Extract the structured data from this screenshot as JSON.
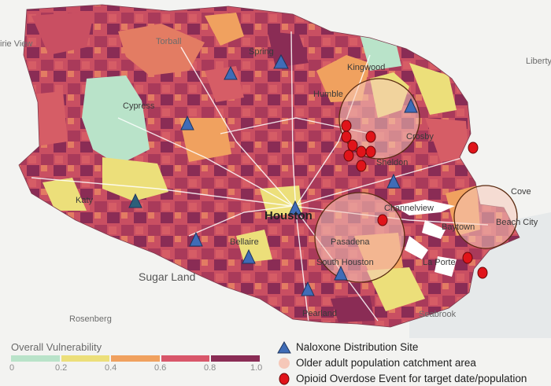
{
  "places": {
    "torball": "Torball",
    "spring": "Spring",
    "prairie_view": "irie View",
    "kingwood": "Kingwood",
    "humble": "Humble",
    "liberty": "Liberty",
    "cypress": "Cypress",
    "crosby": "Crosby",
    "sheldon": "Sheldon",
    "katy": "Katy",
    "houston": "Houston",
    "channelview": "Channelview",
    "cove": "Cove",
    "baytown": "Baytown",
    "beach_city": "Beach City",
    "pasadena": "Pasadena",
    "bellaire": "Bellaire",
    "south_houston": "South Houston",
    "la_porte": "La Porte",
    "sugar_land": "Sugar Land",
    "pearland": "Pearland",
    "rosenberg": "Rosenberg",
    "seabrook": "Seabrook"
  },
  "legend": {
    "scale_title": "Overall Vulnerability",
    "ticks": [
      "0",
      "0.2",
      "0.4",
      "0.6",
      "0.8",
      "1.0"
    ],
    "scale_colors": [
      "#b9e3c9",
      "#ecdf7a",
      "#f0a15f",
      "#d8566a",
      "#8a2c55"
    ],
    "naloxone_label": "Naloxone Distribution Site",
    "catchment_label": "Older adult population catchment area",
    "overdose_label": "Opioid Overdose Event for target date/population"
  },
  "colors": {
    "background": "#f3f3f1",
    "naloxone": "#3f6cb7",
    "overdose": "#e0141a",
    "catchment_fill": "#f6c8b9",
    "catchment_stroke": "#5a2a10"
  }
}
